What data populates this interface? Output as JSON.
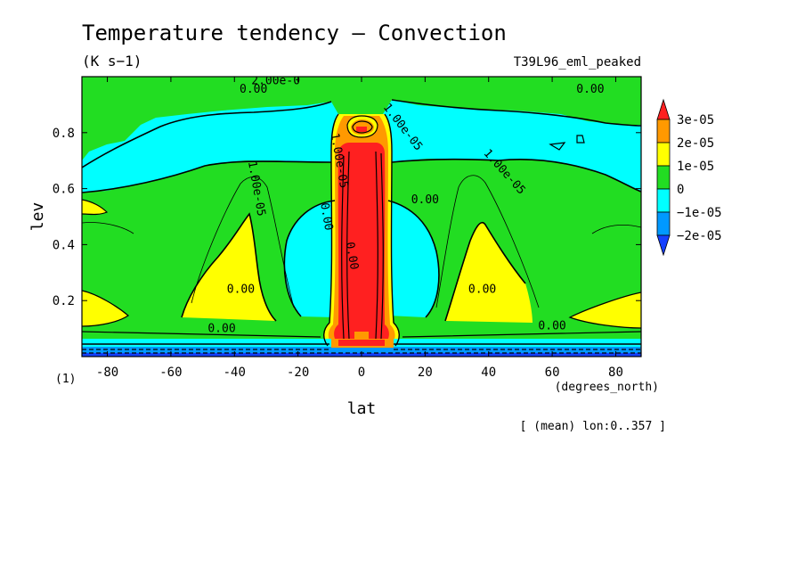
{
  "chart_data": {
    "type": "contour",
    "title": "Temperature tendency — Convection",
    "units": "(K s−1)",
    "run_label": "T39L96_eml_peaked",
    "xlabel": "lat",
    "xunits": "(degrees_north)",
    "ylabel": "lev",
    "yunits": "(1)",
    "footnote": "[ (mean) lon:0..357 ]",
    "x_ticks": [
      -80,
      -60,
      -40,
      -20,
      0,
      20,
      40,
      60,
      80
    ],
    "y_ticks": [
      "0.2",
      "0.4",
      "0.6",
      "0.8"
    ],
    "x_range": [
      -88,
      88
    ],
    "y_range": [
      1.0,
      0.0
    ],
    "colorbar": {
      "labels": [
        "3e-05",
        "2e-05",
        "1e-05",
        "0",
        "−1e-05",
        "−2e-05"
      ],
      "colors": [
        "#ff2020",
        "#ff9900",
        "#ffff00",
        "#22dd22",
        "#00ffff",
        "#0099ff",
        "#1540ff"
      ]
    },
    "contour_labels": [
      {
        "text": "0.00",
        "lat": -44,
        "lev": 0.1
      },
      {
        "text": "0.00",
        "lat": 60,
        "lev": 0.11
      },
      {
        "text": "0.00",
        "lat": -38,
        "lev": 0.24
      },
      {
        "text": "0.00",
        "lat": 38,
        "lev": 0.24
      },
      {
        "text": "0.00",
        "lat": -11,
        "lev": 0.5
      },
      {
        "text": "0.00",
        "lat": -3,
        "lev": 0.36
      },
      {
        "text": "0.00",
        "lat": 20,
        "lev": 0.56
      },
      {
        "text": "0.00",
        "lat": -34,
        "lev": 0.955
      },
      {
        "text": "0.00",
        "lat": 72,
        "lev": 0.955
      },
      {
        "text": "1.00e-05",
        "lat": -33,
        "lev": 0.6
      },
      {
        "text": "1.00e-05",
        "lat": 45,
        "lev": 0.66
      },
      {
        "text": "1.00e-05",
        "lat": 13,
        "lev": 0.82
      },
      {
        "text": "1.00e-05",
        "lat": -7,
        "lev": 0.7
      },
      {
        "text": "2.00e-0",
        "lat": -27,
        "lev": 0.985
      }
    ]
  }
}
